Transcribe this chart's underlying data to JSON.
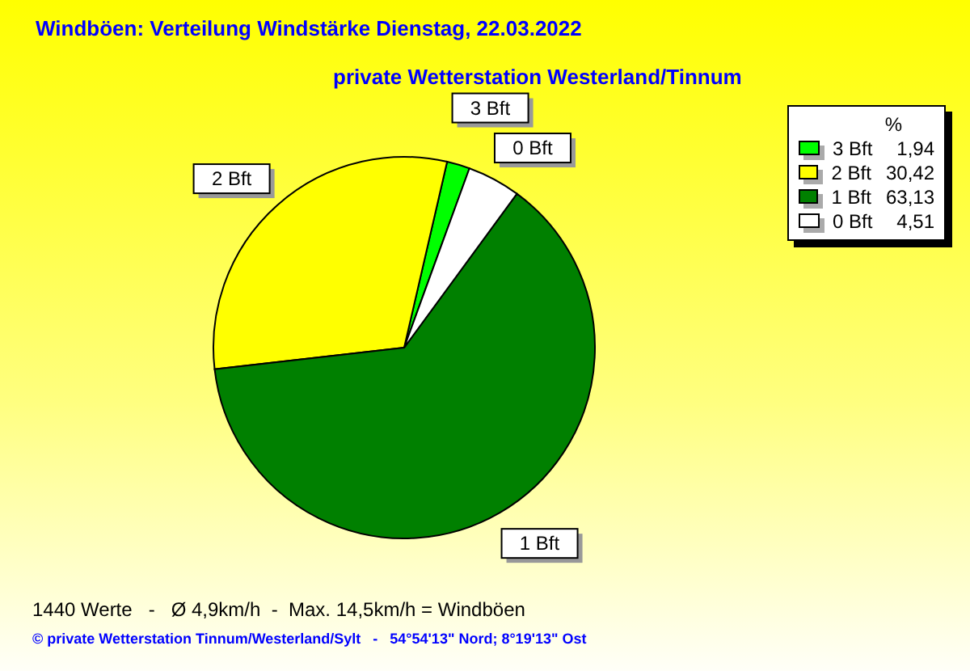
{
  "chart_data": {
    "type": "pie",
    "title": "Windböen: Verteilung Windstärke  Dienstag, 22.03.2022",
    "subtitle": "private Wetterstation Westerland/Tinnum",
    "categories": [
      "3 Bft",
      "2 Bft",
      "1 Bft",
      "0 Bft"
    ],
    "values": [
      1.94,
      30.42,
      63.13,
      4.51
    ],
    "colors": [
      "#00ff00",
      "#ffff00",
      "#008000",
      "#ffffff"
    ],
    "value_labels": [
      "1,94",
      "30,42",
      "63,13",
      "4,51"
    ],
    "legend_title": "%",
    "legend": "top right",
    "annotations": [
      "1440 Werte   -   Ø 4,9km/h  -  Max. 14,5km/h = Windböen",
      "© private Wetterstation Tinnum/Westerland/Sylt   -   54°54'13\" Nord; 8°19'13\" Ost"
    ]
  }
}
